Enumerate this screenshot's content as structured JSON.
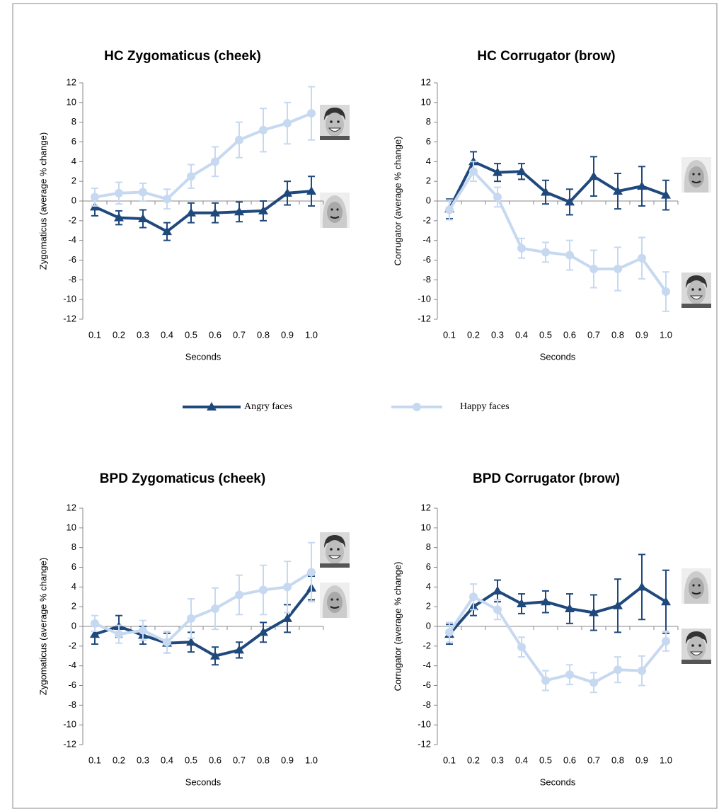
{
  "chart_data": [
    {
      "type": "line",
      "title": "HC Zygomaticus (cheek)",
      "x_label": "Seconds",
      "y_label": "Zygomaticus (average % change)",
      "categories": [
        "0.1",
        "0.2",
        "0.3",
        "0.4",
        "0.5",
        "0.6",
        "0.7",
        "0.8",
        "0.9",
        "1.0"
      ],
      "ylim": [
        -12,
        12
      ],
      "yticks": [
        -12,
        -10,
        -8,
        -6,
        -4,
        -2,
        0,
        2,
        4,
        6,
        8,
        10,
        12
      ],
      "series": [
        {
          "name": "Angry faces",
          "color": "#1f497d",
          "marker": "triangle",
          "values": [
            -0.6,
            -1.7,
            -1.8,
            -3.1,
            -1.2,
            -1.2,
            -1.1,
            -1.0,
            0.8,
            1.0
          ],
          "errors": [
            0.9,
            0.7,
            0.9,
            0.9,
            1.0,
            1.0,
            1.0,
            1.0,
            1.2,
            1.5
          ]
        },
        {
          "name": "Happy faces",
          "color": "#c6d9f1",
          "marker": "circle",
          "values": [
            0.4,
            0.8,
            0.9,
            0.2,
            2.5,
            4.0,
            6.2,
            7.2,
            7.9,
            8.9
          ],
          "errors": [
            0.9,
            1.1,
            0.9,
            1.0,
            1.2,
            1.5,
            1.8,
            2.2,
            2.1,
            2.7
          ]
        }
      ]
    },
    {
      "type": "line",
      "title": "HC Corrugator (brow)",
      "x_label": "Seconds",
      "y_label": "Corrugator (average % change)",
      "categories": [
        "0.1",
        "0.2",
        "0.3",
        "0.4",
        "0.5",
        "0.6",
        "0.7",
        "0.8",
        "0.9",
        "1.0"
      ],
      "ylim": [
        -12,
        12
      ],
      "yticks": [
        -12,
        -10,
        -8,
        -6,
        -4,
        -2,
        0,
        2,
        4,
        6,
        8,
        10,
        12
      ],
      "series": [
        {
          "name": "Angry faces",
          "color": "#1f497d",
          "marker": "triangle",
          "values": [
            -0.8,
            4.0,
            2.9,
            3.0,
            0.9,
            -0.1,
            2.5,
            1.0,
            1.5,
            0.6
          ],
          "errors": [
            1.0,
            1.0,
            0.9,
            0.8,
            1.2,
            1.3,
            2.0,
            1.8,
            2.0,
            1.5
          ]
        },
        {
          "name": "Happy faces",
          "color": "#c6d9f1",
          "marker": "circle",
          "values": [
            -0.9,
            3.0,
            0.4,
            -4.8,
            -5.2,
            -5.5,
            -6.9,
            -6.9,
            -5.8,
            -9.2
          ],
          "errors": [
            1.0,
            1.0,
            1.0,
            1.0,
            1.0,
            1.5,
            1.9,
            2.2,
            2.1,
            2.0
          ]
        }
      ]
    },
    {
      "type": "line",
      "title": "BPD Zygomaticus (cheek)",
      "x_label": "Seconds",
      "y_label": "Zygomaticus (average % change)",
      "categories": [
        "0.1",
        "0.2",
        "0.3",
        "0.4",
        "0.5",
        "0.6",
        "0.7",
        "0.8",
        "0.9",
        "1.0"
      ],
      "ylim": [
        -12,
        12
      ],
      "yticks": [
        -12,
        -10,
        -8,
        -6,
        -4,
        -2,
        0,
        2,
        4,
        6,
        8,
        10,
        12
      ],
      "series": [
        {
          "name": "Angry faces",
          "color": "#1f497d",
          "marker": "triangle",
          "values": [
            -0.8,
            0.0,
            -0.9,
            -1.7,
            -1.6,
            -3.0,
            -2.4,
            -0.6,
            0.8,
            3.9
          ],
          "errors": [
            1.0,
            1.1,
            0.9,
            1.0,
            1.0,
            0.9,
            0.8,
            1.0,
            1.4,
            1.2
          ]
        },
        {
          "name": "Happy faces",
          "color": "#c6d9f1",
          "marker": "circle",
          "values": [
            0.3,
            -0.8,
            -0.4,
            -1.6,
            0.8,
            1.8,
            3.2,
            3.7,
            4.0,
            5.5
          ],
          "errors": [
            0.8,
            0.9,
            1.0,
            1.1,
            2.0,
            2.1,
            2.0,
            2.5,
            2.6,
            3.0
          ]
        }
      ]
    },
    {
      "type": "line",
      "title": "BPD Corrugator (brow)",
      "x_label": "Seconds",
      "y_label": "Corrugator (average % change)",
      "categories": [
        "0.1",
        "0.2",
        "0.3",
        "0.4",
        "0.5",
        "0.6",
        "0.7",
        "0.8",
        "0.9",
        "1.0"
      ],
      "ylim": [
        -12,
        12
      ],
      "yticks": [
        -12,
        -10,
        -8,
        -6,
        -4,
        -2,
        0,
        2,
        4,
        6,
        8,
        10,
        12
      ],
      "series": [
        {
          "name": "Angry faces",
          "color": "#1f497d",
          "marker": "triangle",
          "values": [
            -0.8,
            2.0,
            3.6,
            2.3,
            2.5,
            1.8,
            1.4,
            2.1,
            4.0,
            2.5
          ],
          "errors": [
            1.0,
            0.9,
            1.1,
            1.0,
            1.1,
            1.5,
            1.8,
            2.7,
            3.3,
            3.2
          ]
        },
        {
          "name": "Happy faces",
          "color": "#c6d9f1",
          "marker": "circle",
          "values": [
            -0.6,
            3.0,
            1.7,
            -2.1,
            -5.5,
            -4.9,
            -5.7,
            -4.4,
            -4.5,
            -1.5
          ],
          "errors": [
            1.0,
            1.3,
            1.0,
            1.0,
            1.0,
            1.0,
            1.0,
            1.3,
            1.5,
            1.0
          ]
        }
      ]
    }
  ]
}
